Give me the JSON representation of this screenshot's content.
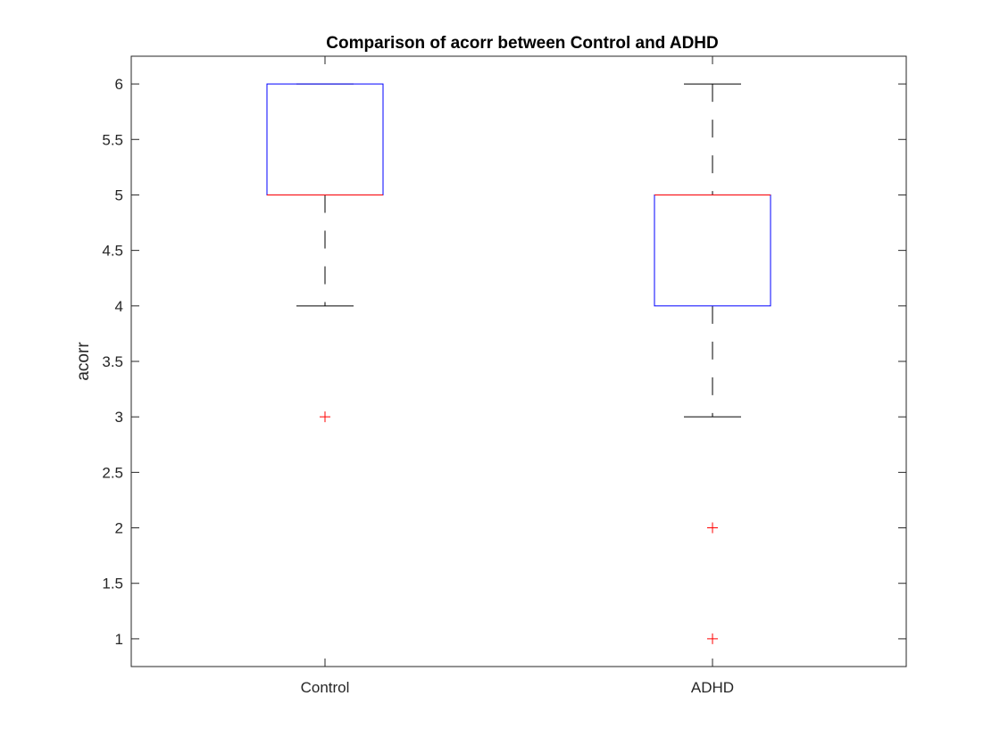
{
  "chart_data": {
    "type": "box",
    "title": "Comparison of acorr between Control and ADHD",
    "xlabel": "",
    "ylabel": "acorr",
    "ylim": [
      0.75,
      6.25
    ],
    "yticks": [
      "1",
      "1.5",
      "2",
      "2.5",
      "3",
      "3.5",
      "4",
      "4.5",
      "5",
      "5.5",
      "6"
    ],
    "categories": [
      "Control",
      "ADHD"
    ],
    "boxes": [
      {
        "category": "Control",
        "whisker_low": 4,
        "q1": 5,
        "median": 5,
        "q3": 6,
        "whisker_high": 6,
        "outliers": [
          3
        ]
      },
      {
        "category": "ADHD",
        "whisker_low": 3,
        "q1": 4,
        "median": 5,
        "q3": 5,
        "whisker_high": 6,
        "outliers": [
          2,
          1
        ]
      }
    ],
    "grid": false,
    "colors": {
      "box": "#0000ff",
      "median": "#ff0000",
      "whisker": "#000000",
      "outlier": "#ff0000",
      "axis": "#262626"
    }
  }
}
